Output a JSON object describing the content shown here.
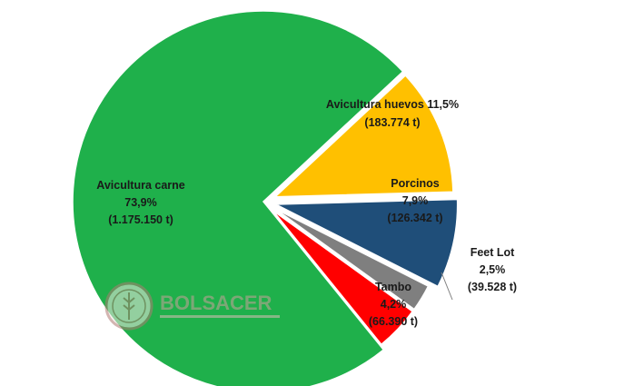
{
  "chart_data": {
    "type": "pie",
    "title": "",
    "slices": [
      {
        "key": "carne",
        "label": "Avicultura carne",
        "pct_text": "73,9%",
        "tons_text": "(1.175.150 t)",
        "value": 73.9,
        "color": "#1fb04b"
      },
      {
        "key": "huevos",
        "label": "Avicultura huevos",
        "pct_text": "11,5%",
        "tons_text": "(183.774 t)",
        "value": 11.5,
        "color": "#ffc000"
      },
      {
        "key": "porcinos",
        "label": "Porcinos",
        "pct_text": "7,9%",
        "tons_text": "(126.342 t)",
        "value": 7.9,
        "color": "#1f4e79"
      },
      {
        "key": "feetlot",
        "label": "Feet Lot",
        "pct_text": "2,5%",
        "tons_text": "(39.528 t)",
        "value": 2.5,
        "color": "#7f7f7f"
      },
      {
        "key": "tambo",
        "label": "Tambo",
        "pct_text": "4,2%",
        "tons_text": "(66.390 t)",
        "value": 4.2,
        "color": "#ff0000"
      }
    ],
    "legend": "none"
  },
  "watermark": {
    "text": "BOLSACER"
  }
}
